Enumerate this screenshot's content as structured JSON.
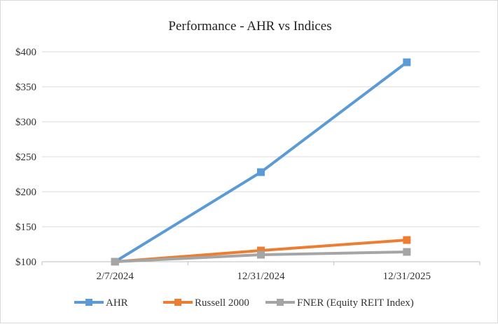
{
  "chart_data": {
    "type": "line",
    "title": "Performance - AHR vs Indices",
    "xlabel": "",
    "ylabel": "",
    "categories": [
      "2/7/2024",
      "12/31/2024",
      "12/31/2025"
    ],
    "ylim": [
      100,
      400
    ],
    "yticks": [
      100,
      150,
      200,
      250,
      300,
      350,
      400
    ],
    "ytick_labels": [
      "$100",
      "$150",
      "$200",
      "$250",
      "$300",
      "$350",
      "$400"
    ],
    "grid": true,
    "legend_position": "bottom",
    "series": [
      {
        "name": "AHR",
        "values": [
          100,
          228,
          385
        ],
        "color": "#5b9bd5",
        "marker": "square"
      },
      {
        "name": "Russell 2000",
        "values": [
          100,
          116,
          131
        ],
        "color": "#ed7d31",
        "marker": "square"
      },
      {
        "name": "FNER (Equity REIT Index)",
        "values": [
          100,
          110,
          114
        ],
        "color": "#a5a5a5",
        "marker": "square"
      }
    ]
  }
}
